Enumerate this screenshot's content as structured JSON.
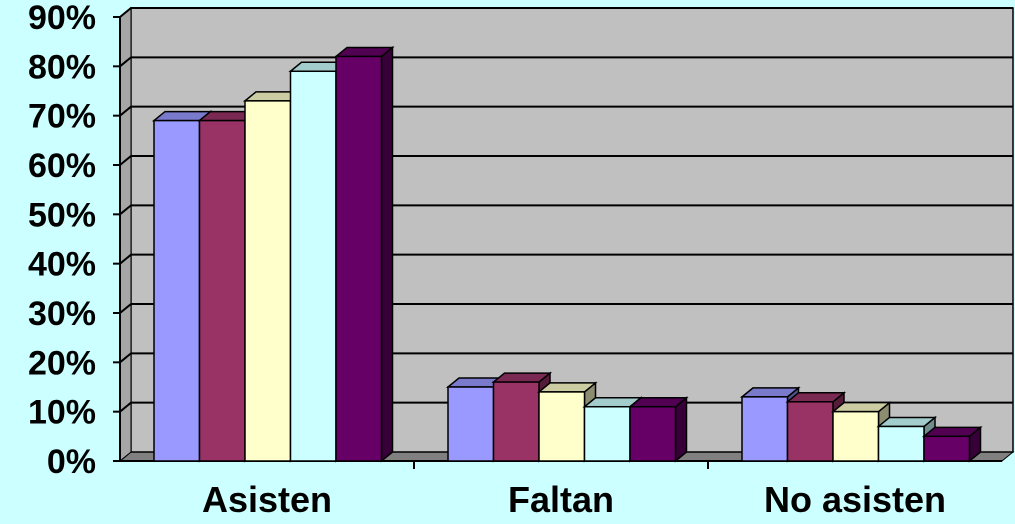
{
  "chart_data": {
    "type": "bar",
    "categories": [
      "Asisten",
      "Faltan",
      "No asisten"
    ],
    "series": [
      {
        "values": [
          69,
          15,
          13
        ],
        "color": "#9999ff"
      },
      {
        "values": [
          69,
          16,
          12
        ],
        "color": "#993366"
      },
      {
        "values": [
          73,
          14,
          10
        ],
        "color": "#ffffcc"
      },
      {
        "values": [
          79,
          11,
          7
        ],
        "color": "#ccffff"
      },
      {
        "values": [
          82,
          11,
          5
        ],
        "color": "#660066"
      }
    ],
    "ylim": [
      0,
      90
    ],
    "ytick_step": 10,
    "ytick_labels": [
      "0%",
      "10%",
      "20%",
      "30%",
      "40%",
      "50%",
      "60%",
      "70%",
      "80%",
      "90%"
    ],
    "grid": true,
    "legend": "none",
    "plot_background": "#c0c0c0",
    "page_background": "#ccffff"
  }
}
